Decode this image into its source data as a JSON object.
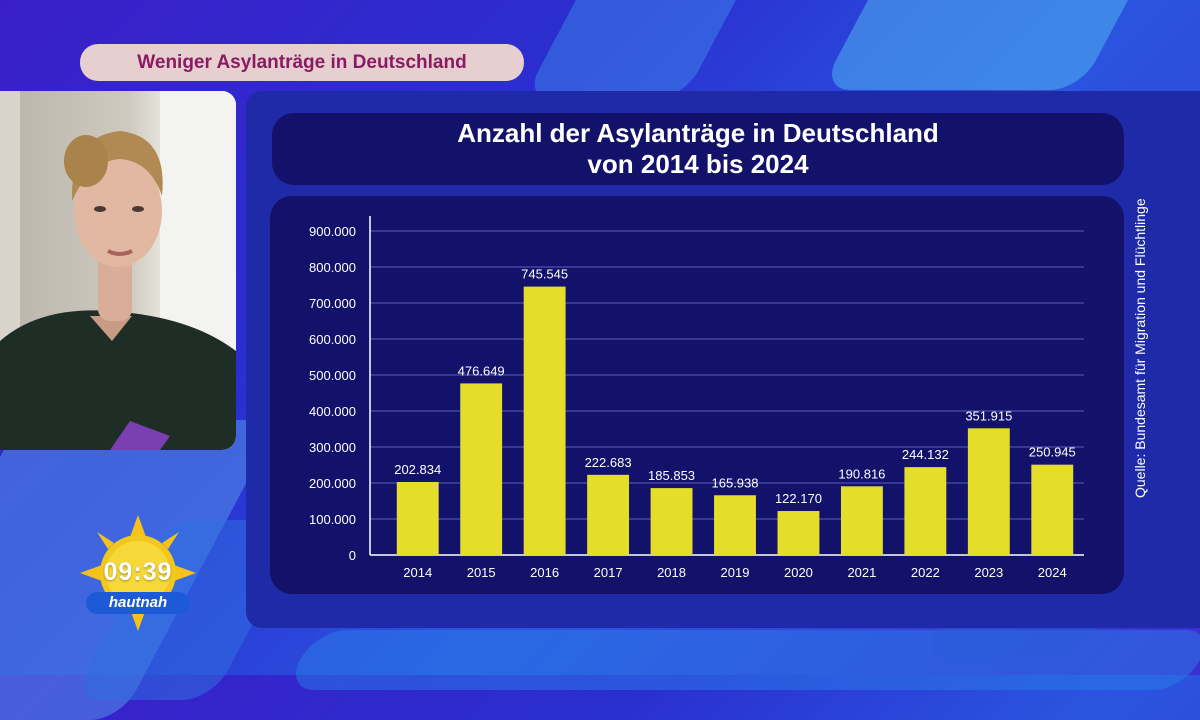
{
  "header": {
    "headline": "Weniger Asylanträge in Deutschland"
  },
  "chart_data": {
    "type": "bar",
    "title_line1": "Anzahl der Asylanträge in Deutschland",
    "title_line2": "von 2014 bis 2024",
    "categories": [
      "2014",
      "2015",
      "2016",
      "2017",
      "2018",
      "2019",
      "2020",
      "2021",
      "2022",
      "2023",
      "2024"
    ],
    "values": [
      202834,
      476649,
      745545,
      222683,
      185853,
      165938,
      122170,
      190816,
      244132,
      351915,
      250945
    ],
    "value_labels": [
      "202.834",
      "476.649",
      "745.545",
      "222.683",
      "185.853",
      "165.938",
      "122.170",
      "190.816",
      "244.132",
      "351.915",
      "250.945"
    ],
    "y_ticks": [
      0,
      100000,
      200000,
      300000,
      400000,
      500000,
      600000,
      700000,
      800000,
      900000
    ],
    "y_tick_labels": [
      "0",
      "100.000",
      "200.000",
      "300.000",
      "400.000",
      "500.000",
      "600.000",
      "700.000",
      "800.000",
      "900.000"
    ],
    "ylim": [
      0,
      900000
    ],
    "grid": true,
    "bar_color": "#e4dd2a",
    "source": "Quelle: Bundesamt für Migration und Flüchtlinge"
  },
  "clock": {
    "time": "09:39",
    "tag": "hautnah"
  },
  "colors": {
    "headline_bg": "#e7cfcf",
    "headline_text": "#8b1a63",
    "panel": "#1f2aa8",
    "chart_bg": "#12126a"
  }
}
